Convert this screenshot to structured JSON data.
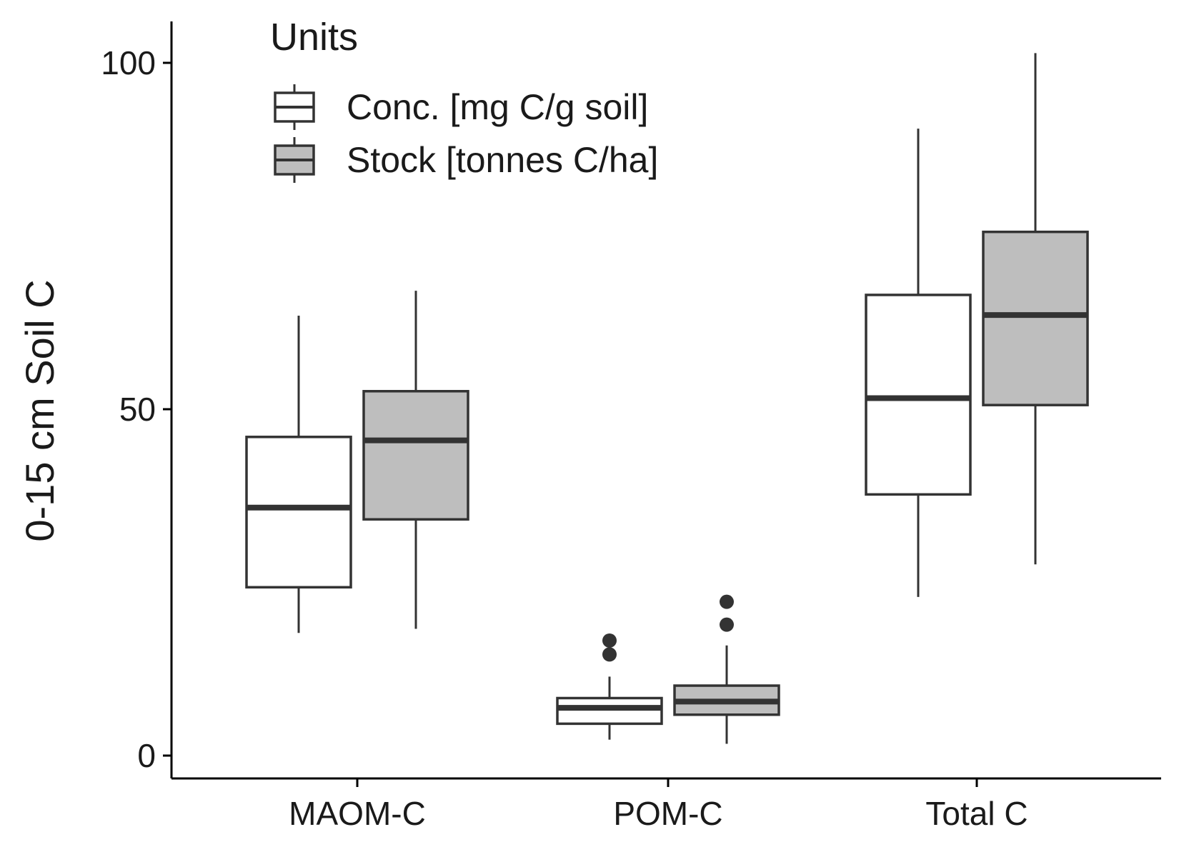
{
  "chart_data": {
    "type": "boxplot",
    "title": "",
    "xlabel": "",
    "ylabel": "0-15 cm Soil C",
    "ylim": [
      -3,
      106
    ],
    "yticks": [
      0,
      50,
      100
    ],
    "categories": [
      "MAOM-C",
      "POM-C",
      "Total C"
    ],
    "legend": {
      "title": "Units",
      "placement": "top-left"
    },
    "grid": false,
    "series": [
      {
        "name": "Conc. [mg C/g soil]",
        "color": "#ffffff",
        "boxes": [
          {
            "category": "MAOM-C",
            "whisker_low": 17.7,
            "q1": 24.3,
            "median": 35.8,
            "q3": 46.0,
            "whisker_high": 63.5,
            "outliers": []
          },
          {
            "category": "POM-C",
            "whisker_low": 2.3,
            "q1": 4.6,
            "median": 6.9,
            "q3": 8.3,
            "whisker_high": 11.4,
            "outliers": [
              14.6,
              16.6
            ]
          },
          {
            "category": "Total C",
            "whisker_low": 22.9,
            "q1": 37.7,
            "median": 51.6,
            "q3": 66.5,
            "whisker_high": 90.5,
            "outliers": []
          }
        ]
      },
      {
        "name": "Stock [tonnes C/ha]",
        "color": "#bebebe",
        "boxes": [
          {
            "category": "MAOM-C",
            "whisker_low": 18.3,
            "q1": 34.1,
            "median": 45.5,
            "q3": 52.6,
            "whisker_high": 67.1,
            "outliers": []
          },
          {
            "category": "POM-C",
            "whisker_low": 1.7,
            "q1": 5.9,
            "median": 7.8,
            "q3": 10.1,
            "whisker_high": 15.9,
            "outliers": [
              18.9,
              22.2
            ]
          },
          {
            "category": "Total C",
            "whisker_low": 27.6,
            "q1": 50.6,
            "median": 63.6,
            "q3": 75.6,
            "whisker_high": 101.4,
            "outliers": []
          }
        ]
      }
    ]
  }
}
